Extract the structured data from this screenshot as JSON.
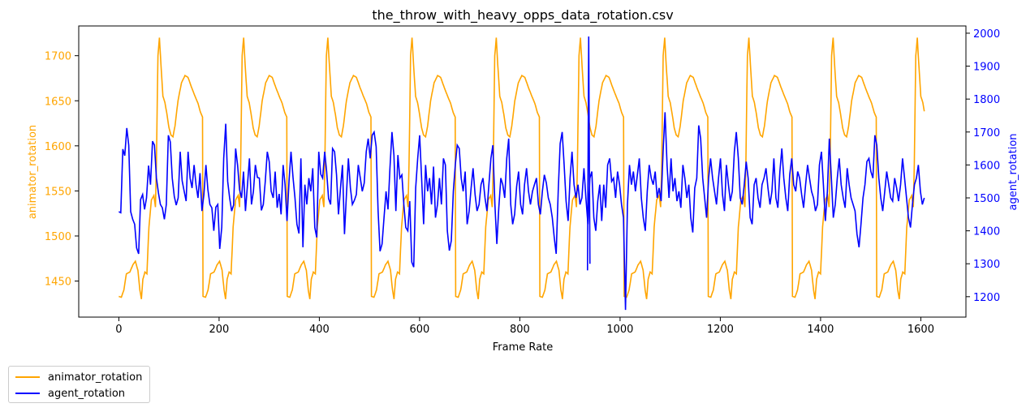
{
  "chart_data": {
    "type": "line",
    "title": "the_throw_with_heavy_opps_data_rotation.csv",
    "xlabel": "Frame Rate",
    "ylabel_left": "animator_rotation",
    "ylabel_right": "agent_rotation",
    "xlim": [
      -80,
      1690
    ],
    "ylim_left": [
      1410,
      1733
    ],
    "ylim_right": [
      1138,
      2022
    ],
    "x_ticks": [
      0,
      200,
      400,
      600,
      800,
      1000,
      1200,
      1400,
      1600
    ],
    "y_ticks_left": [
      1450,
      1500,
      1550,
      1600,
      1650,
      1700
    ],
    "y_ticks_right": [
      1200,
      1300,
      1400,
      1500,
      1600,
      1700,
      1800,
      1900,
      2000
    ],
    "legend_position": "bottom-left outside",
    "x_max": 1607,
    "animator_period": 168,
    "animator_cycle_start": 0,
    "animator_cycle_keypoints": [
      [
        0,
        1433
      ],
      [
        5,
        1432
      ],
      [
        10,
        1440
      ],
      [
        15,
        1458
      ],
      [
        22,
        1460
      ],
      [
        28,
        1468
      ],
      [
        33,
        1472
      ],
      [
        38,
        1462
      ],
      [
        42,
        1440
      ],
      [
        45,
        1430
      ],
      [
        48,
        1452
      ],
      [
        52,
        1460
      ],
      [
        56,
        1458
      ],
      [
        60,
        1510
      ],
      [
        65,
        1540
      ],
      [
        70,
        1545
      ],
      [
        73,
        1532
      ],
      [
        75,
        1580
      ],
      [
        78,
        1700
      ],
      [
        81,
        1720
      ],
      [
        84,
        1690
      ],
      [
        88,
        1655
      ],
      [
        92,
        1648
      ],
      [
        96,
        1635
      ],
      [
        100,
        1620
      ],
      [
        104,
        1612
      ],
      [
        108,
        1610
      ],
      [
        112,
        1622
      ],
      [
        118,
        1650
      ],
      [
        125,
        1670
      ],
      [
        132,
        1678
      ],
      [
        138,
        1676
      ],
      [
        145,
        1665
      ],
      [
        152,
        1655
      ],
      [
        158,
        1647
      ],
      [
        163,
        1637
      ],
      [
        167,
        1632
      ]
    ],
    "agent_series": [
      1458,
      1455,
      1648,
      1628,
      1712,
      1660,
      1458,
      1435,
      1420,
      1348,
      1330,
      1495,
      1510,
      1465,
      1500,
      1598,
      1540,
      1672,
      1660,
      1560,
      1515,
      1480,
      1470,
      1435,
      1480,
      1690,
      1670,
      1560,
      1505,
      1478,
      1500,
      1640,
      1552,
      1520,
      1490,
      1640,
      1560,
      1530,
      1600,
      1540,
      1500,
      1575,
      1460,
      1510,
      1600,
      1525,
      1480,
      1470,
      1400,
      1472,
      1480,
      1345,
      1410,
      1620,
      1725,
      1550,
      1500,
      1460,
      1478,
      1650,
      1600,
      1525,
      1500,
      1580,
      1460,
      1540,
      1620,
      1480,
      1520,
      1600,
      1562,
      1560,
      1462,
      1480,
      1550,
      1640,
      1610,
      1520,
      1500,
      1580,
      1470,
      1512,
      1450,
      1600,
      1540,
      1430,
      1552,
      1640,
      1562,
      1500,
      1420,
      1392,
      1620,
      1350,
      1540,
      1480,
      1560,
      1520,
      1590,
      1410,
      1380,
      1640,
      1572,
      1560,
      1640,
      1580,
      1498,
      1480,
      1650,
      1640,
      1570,
      1450,
      1530,
      1600,
      1390,
      1510,
      1620,
      1530,
      1480,
      1492,
      1510,
      1600,
      1560,
      1520,
      1545,
      1640,
      1680,
      1620,
      1690,
      1700,
      1655,
      1460,
      1338,
      1360,
      1440,
      1520,
      1465,
      1590,
      1700,
      1630,
      1460,
      1630,
      1560,
      1570,
      1480,
      1410,
      1400,
      1490,
      1305,
      1290,
      1530,
      1620,
      1690,
      1560,
      1420,
      1600,
      1520,
      1560,
      1480,
      1595,
      1440,
      1480,
      1560,
      1480,
      1620,
      1600,
      1400,
      1340,
      1370,
      1520,
      1600,
      1660,
      1650,
      1560,
      1520,
      1580,
      1420,
      1460,
      1530,
      1590,
      1510,
      1460,
      1480,
      1540,
      1560,
      1500,
      1460,
      1540,
      1620,
      1660,
      1480,
      1360,
      1470,
      1560,
      1540,
      1500,
      1620,
      1680,
      1480,
      1420,
      1450,
      1535,
      1580,
      1480,
      1450,
      1540,
      1590,
      1520,
      1480,
      1520,
      1540,
      1560,
      1480,
      1450,
      1520,
      1570,
      1545,
      1500,
      1480,
      1440,
      1380,
      1330,
      1520,
      1665,
      1700,
      1600,
      1490,
      1430,
      1560,
      1640,
      1540,
      1500,
      1540,
      1480,
      1500,
      1590,
      1500,
      1420,
      1560,
      1580,
      1440,
      1400,
      1490,
      1540,
      1430,
      1540,
      1470,
      1600,
      1620,
      1550,
      1560,
      1500,
      1580,
      1540,
      1480,
      1440,
      1160,
      1480,
      1600,
      1540,
      1580,
      1520,
      1570,
      1620,
      1500,
      1440,
      1400,
      1520,
      1600,
      1560,
      1540,
      1580,
      1500,
      1530,
      1490,
      1640,
      1760,
      1600,
      1500,
      1620,
      1520,
      1560,
      1490,
      1520,
      1470,
      1600,
      1560,
      1500,
      1540,
      1440,
      1395,
      1530,
      1560,
      1720,
      1680,
      1560,
      1500,
      1440,
      1560,
      1620,
      1560,
      1520,
      1480,
      1560,
      1620,
      1510,
      1460,
      1600,
      1540,
      1490,
      1520,
      1640,
      1700,
      1620,
      1500,
      1480,
      1540,
      1610,
      1560,
      1440,
      1420,
      1540,
      1560,
      1500,
      1470,
      1540,
      1560,
      1590,
      1530,
      1480,
      1520,
      1620,
      1500,
      1470,
      1580,
      1650,
      1560,
      1500,
      1460,
      1570,
      1620,
      1540,
      1520,
      1580,
      1560,
      1510,
      1470,
      1540,
      1600,
      1560,
      1520,
      1500,
      1460,
      1480,
      1600,
      1640,
      1540,
      1430,
      1520,
      1680,
      1560,
      1440,
      1480,
      1560,
      1620,
      1540,
      1500,
      1470,
      1590,
      1540,
      1500,
      1480,
      1460,
      1390,
      1350,
      1420,
      1500,
      1540,
      1610,
      1620,
      1580,
      1560,
      1690,
      1660,
      1560,
      1500,
      1460,
      1520,
      1580,
      1540,
      1500,
      1490,
      1560,
      1530,
      1490,
      1540,
      1620,
      1560,
      1500,
      1440,
      1410,
      1480,
      1540,
      1560,
      1600,
      1520,
      1480,
      1500
    ]
  },
  "legend": {
    "animator_label": "animator_rotation",
    "agent_label": "agent_rotation"
  },
  "colors": {
    "animator": "#FFA500",
    "agent": "#0000FF",
    "axis": "#000000"
  }
}
